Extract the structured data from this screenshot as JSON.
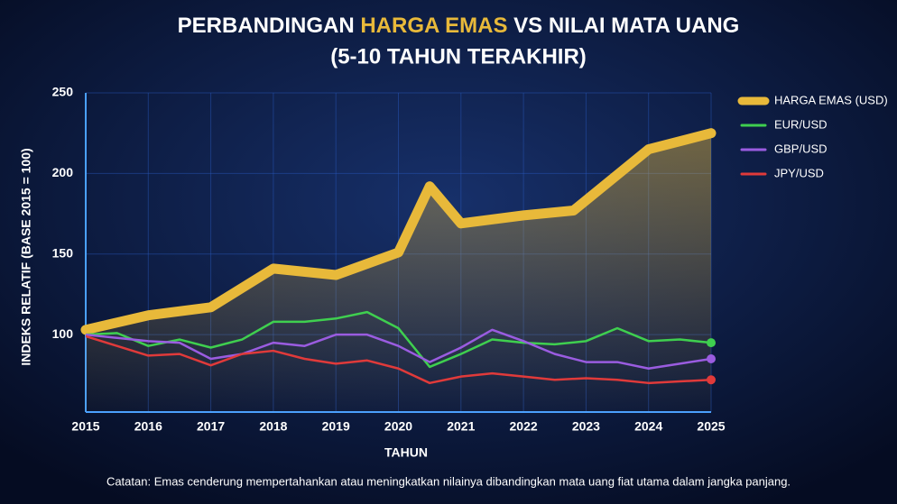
{
  "chart_data": {
    "type": "line",
    "title": "PERBANDINGAN HARGA EMAS VS NILAI MATA UANG",
    "title_highlight": "HARGA EMAS",
    "subtitle": "(5-10 TAHUN TERAKHIR)",
    "x_label": "TAHUN",
    "y_label": "INDEKS RELATIF (BASE 2015 = 100)",
    "note": "Catatan: Emas cenderung mempertahankan atau meningkatkan nilainya dibandingkan mata uang fiat utama dalam jangka panjang.",
    "xlim": [
      2015,
      2025
    ],
    "xticks": [
      2015,
      2016,
      2017,
      2018,
      2019,
      2020,
      2021,
      2022,
      2023,
      2024,
      2025
    ],
    "ylim": [
      52,
      250
    ],
    "yticks": [
      100,
      150,
      200,
      250
    ],
    "grid": true,
    "legend": "top-right",
    "series": [
      {
        "name": "HARGA EMAS (USD)",
        "color": "#e8b93a",
        "x": [
          2015,
          2016,
          2017,
          2018,
          2019,
          2020,
          2020.5,
          2021,
          2022,
          2022.8,
          2024,
          2025
        ],
        "values": [
          103,
          112,
          117,
          141,
          137,
          151,
          192,
          169,
          174,
          177,
          215,
          225
        ]
      },
      {
        "name": "EUR/USD",
        "color": "#3fcf4f",
        "x": [
          2015,
          2015.5,
          2016,
          2016.5,
          2017,
          2017.5,
          2018,
          2018.5,
          2019,
          2019.5,
          2020,
          2020.5,
          2021,
          2021.5,
          2022,
          2022.5,
          2023,
          2023.5,
          2024,
          2024.5,
          2025
        ],
        "values": [
          100,
          101,
          93,
          97,
          92,
          97,
          108,
          108,
          110,
          114,
          104,
          80,
          88,
          97,
          95,
          94,
          96,
          104,
          96,
          97,
          95
        ]
      },
      {
        "name": "GBP/USD",
        "color": "#9a5ce0",
        "x": [
          2015,
          2015.5,
          2016,
          2016.5,
          2017,
          2017.5,
          2018,
          2018.5,
          2019,
          2019.5,
          2020,
          2020.5,
          2021,
          2021.5,
          2022,
          2022.5,
          2023,
          2023.5,
          2024,
          2024.5,
          2025
        ],
        "values": [
          100,
          98,
          96,
          95,
          85,
          88,
          95,
          93,
          100,
          100,
          93,
          83,
          92,
          103,
          96,
          88,
          83,
          83,
          79,
          82,
          85
        ]
      },
      {
        "name": "JPY/USD",
        "color": "#e03a3a",
        "x": [
          2015,
          2015.5,
          2016,
          2016.5,
          2017,
          2017.5,
          2018,
          2018.5,
          2019,
          2019.5,
          2020,
          2020.5,
          2021,
          2021.5,
          2022,
          2022.5,
          2023,
          2023.5,
          2024,
          2024.5,
          2025
        ],
        "values": [
          99,
          93,
          87,
          88,
          81,
          88,
          90,
          85,
          82,
          84,
          79,
          70,
          74,
          76,
          74,
          72,
          73,
          72,
          70,
          71,
          72
        ]
      }
    ]
  }
}
